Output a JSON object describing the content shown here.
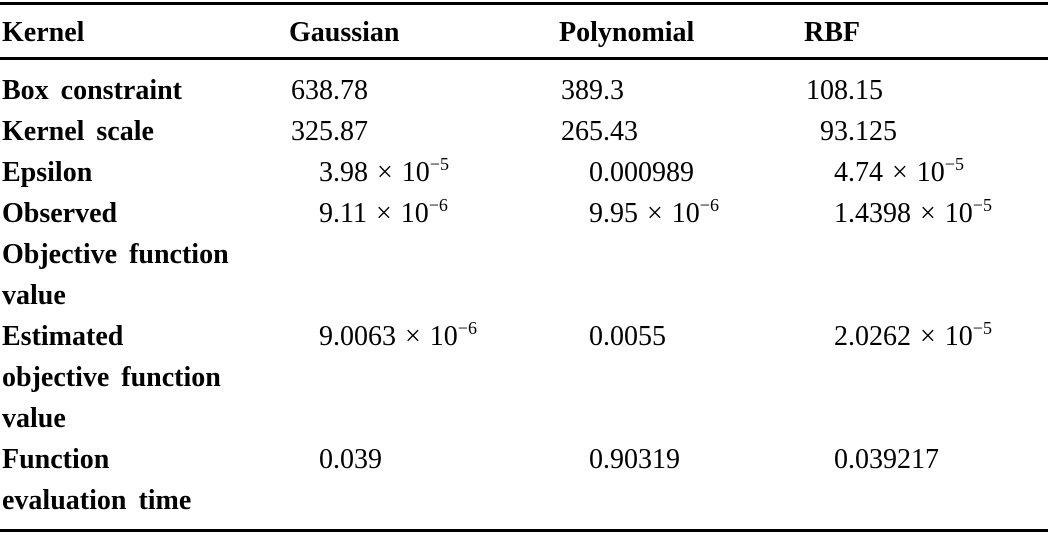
{
  "colors": {
    "text": "#000000",
    "background": "#ffffff",
    "rule": "#000000"
  },
  "table": {
    "times_symbol": "×",
    "power_base": "10",
    "columns": [
      {
        "label": "Kernel"
      },
      {
        "label": "Gaussian"
      },
      {
        "label": "Polynomial"
      },
      {
        "label": "RBF"
      }
    ],
    "rows": [
      {
        "label_lines": [
          "Box constraint"
        ],
        "values": [
          {
            "mantissa": "638.78"
          },
          {
            "mantissa": "389.3"
          },
          {
            "mantissa": "108.15"
          }
        ]
      },
      {
        "label_lines": [
          "Kernel scale"
        ],
        "values": [
          {
            "mantissa": "325.87"
          },
          {
            "mantissa": "265.43"
          },
          {
            "mantissa": "93.125"
          }
        ]
      },
      {
        "label_lines": [
          "Epsilon"
        ],
        "values": [
          {
            "mantissa": "3.98",
            "exponent": "−5"
          },
          {
            "mantissa": "0.000989"
          },
          {
            "mantissa": "4.74",
            "exponent": "−5"
          }
        ]
      },
      {
        "label_lines": [
          "Observed",
          "Objective function",
          "value"
        ],
        "values": [
          {
            "mantissa": "9.11",
            "exponent": "−6"
          },
          {
            "mantissa": "9.95",
            "exponent": "−6"
          },
          {
            "mantissa": "1.4398",
            "exponent": "−5"
          }
        ]
      },
      {
        "label_lines": [
          "Estimated",
          "objective function",
          "value"
        ],
        "values": [
          {
            "mantissa": "9.0063",
            "exponent": "−6"
          },
          {
            "mantissa": "0.0055"
          },
          {
            "mantissa": "2.0262",
            "exponent": "−5"
          }
        ]
      },
      {
        "label_lines": [
          "Function",
          "evaluation time"
        ],
        "values": [
          {
            "mantissa": "0.039"
          },
          {
            "mantissa": "0.90319"
          },
          {
            "mantissa": "0.039217"
          }
        ]
      }
    ]
  }
}
